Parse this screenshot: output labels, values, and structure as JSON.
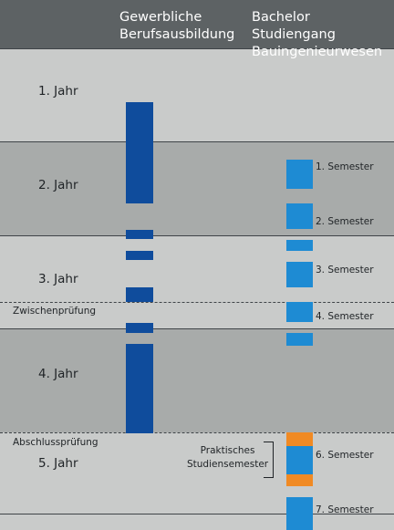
{
  "headers": {
    "apprenticeship_line1": "Gewerbliche",
    "apprenticeship_line2": "Berufsausbildung",
    "bachelor_line1": "Bachelor Studiengang",
    "bachelor_line2": "Bauingenieurwesen"
  },
  "years": [
    "1. Jahr",
    "2. Jahr",
    "3. Jahr",
    "4. Jahr",
    "5. Jahr"
  ],
  "exams": {
    "intermediate": "Zwischenprüfung",
    "final": "Abschlussprüfung"
  },
  "semesters": [
    "1. Semester",
    "2. Semester",
    "3. Semester",
    "4. Semester",
    "6. Semester",
    "7. Semester"
  ],
  "internship_note": {
    "line1": "Praktisches",
    "line2": "Studiensemester"
  },
  "colors": {
    "background_light": "#c9cbca",
    "background_dark": "#a8abaa",
    "header_bar": "#5d6264",
    "apprenticeship_block": "#0f4c9c",
    "study_block": "#1e8bd3",
    "internship_block": "#f08a24"
  }
}
